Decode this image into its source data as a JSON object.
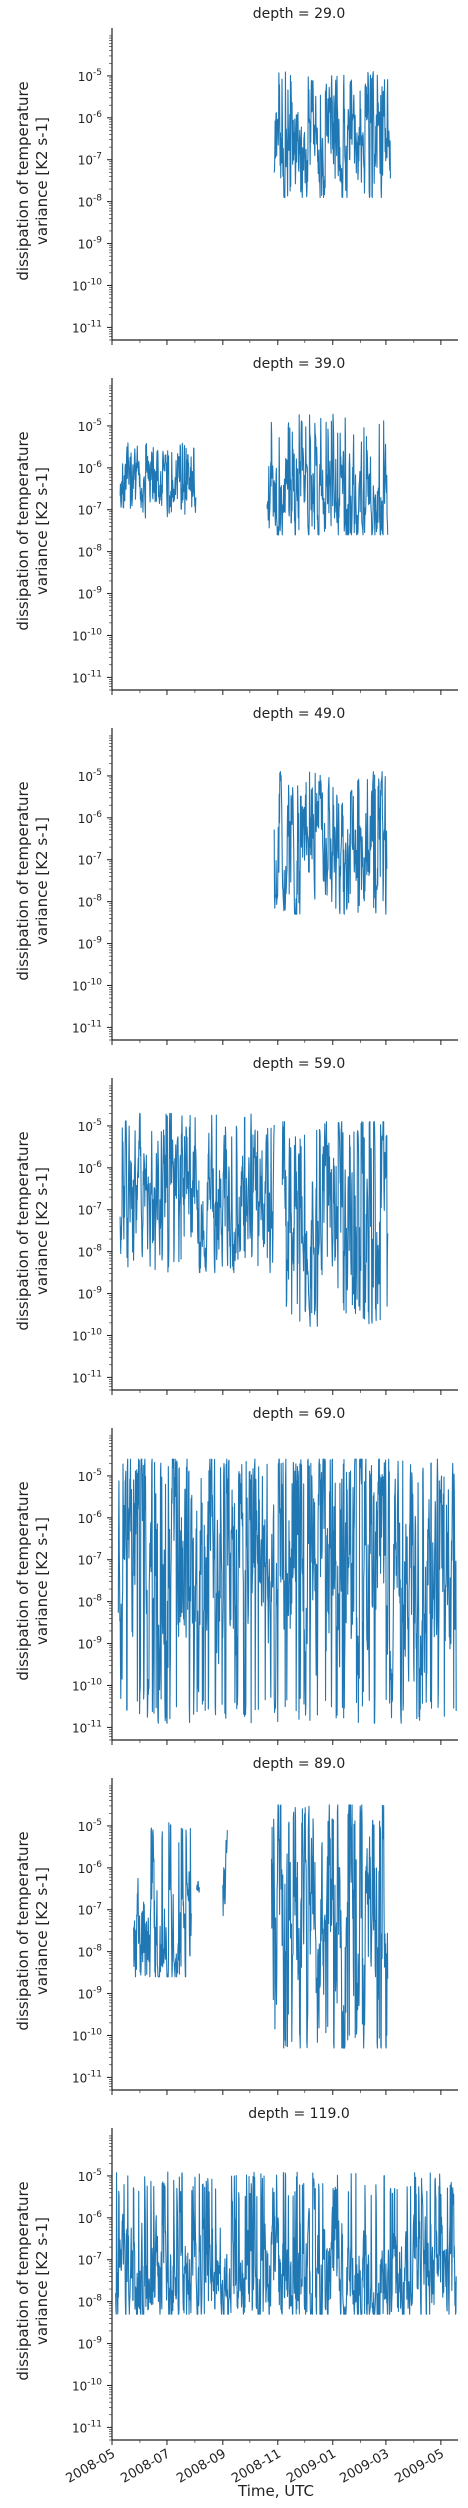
{
  "chart_data": {
    "type": "line",
    "layout": "facet-rows",
    "shared_x": true,
    "xlabel": "Time, UTC",
    "ylabel": "dissipation of temperature variance [K2 s-1]",
    "ylabel_lines": [
      "dissipation of temperature",
      "variance [K2 s-1]"
    ],
    "yscale": "log",
    "ylim": [
      5e-12,
      0.0001
    ],
    "xlim": [
      "2008-05-01",
      "2009-05-20"
    ],
    "x_ticks": [
      "2008-05",
      "2008-07",
      "2008-09",
      "2008-11",
      "2009-01",
      "2009-03",
      "2009-05"
    ],
    "y_ticks": [
      {
        "value": 1e-11,
        "mant": "10",
        "exp": "-11"
      },
      {
        "value": 1e-10,
        "mant": "10",
        "exp": "-10"
      },
      {
        "value": 1e-09,
        "mant": "10",
        "exp": "-9"
      },
      {
        "value": 1e-08,
        "mant": "10",
        "exp": "-8"
      },
      {
        "value": 1e-07,
        "mant": "10",
        "exp": "-7"
      },
      {
        "value": 1e-06,
        "mant": "10",
        "exp": "-6"
      },
      {
        "value": 1e-05,
        "mant": "10",
        "exp": "-5"
      }
    ],
    "color": "#1f77b4",
    "panels": [
      {
        "title": "depth = 29.0",
        "segments": [
          {
            "start": "2008-10-28",
            "end": "2009-03-06",
            "lo": -7.9,
            "hi": -4.9,
            "mid": -6.8,
            "seed": 1
          }
        ]
      },
      {
        "title": "depth = 39.0",
        "segments": [
          {
            "start": "2008-05-10",
            "end": "2008-08-02",
            "lo": -7.2,
            "hi": -5.4,
            "mid": -6.4,
            "seed": 2
          },
          {
            "start": "2008-10-20",
            "end": "2009-03-03",
            "lo": -7.6,
            "hi": -4.7,
            "mid": -6.6,
            "seed": 3
          }
        ]
      },
      {
        "title": "depth = 49.0",
        "segments": [
          {
            "start": "2008-10-28",
            "end": "2009-03-02",
            "lo": -8.3,
            "hi": -4.9,
            "mid": -6.8,
            "seed": 4
          }
        ]
      },
      {
        "title": "depth = 59.0",
        "segments": [
          {
            "start": "2008-05-10",
            "end": "2008-10-28",
            "lo": -8.5,
            "hi": -4.7,
            "mid": -6.6,
            "seed": 5
          },
          {
            "start": "2008-11-06",
            "end": "2009-03-03",
            "lo": -9.8,
            "hi": -4.9,
            "mid": -6.9,
            "seed": 6
          }
        ]
      },
      {
        "title": "depth = 69.0",
        "segments": [
          {
            "start": "2008-05-08",
            "end": "2009-05-18",
            "lo": -10.9,
            "hi": -4.6,
            "mid": -7.0,
            "seed": 7
          }
        ]
      },
      {
        "title": "depth = 89.0",
        "segments": [
          {
            "start": "2008-05-25",
            "end": "2008-07-28",
            "lo": -8.6,
            "hi": -4.9,
            "mid": -7.6,
            "seed": 8
          },
          {
            "start": "2008-08-03",
            "end": "2008-08-06",
            "lo": -6.6,
            "hi": -6.1,
            "mid": -6.4,
            "seed": 9
          },
          {
            "start": "2008-09-01",
            "end": "2008-09-06",
            "lo": -7.8,
            "hi": -5.0,
            "mid": -6.4,
            "seed": 10
          },
          {
            "start": "2008-10-25",
            "end": "2009-03-03",
            "lo": -10.3,
            "hi": -4.5,
            "mid": -7.2,
            "seed": 11
          }
        ]
      },
      {
        "title": "depth = 119.0",
        "segments": [
          {
            "start": "2008-05-05",
            "end": "2009-05-18",
            "lo": -8.3,
            "hi": -4.9,
            "mid": -7.6,
            "seed": 12
          }
        ]
      }
    ]
  }
}
